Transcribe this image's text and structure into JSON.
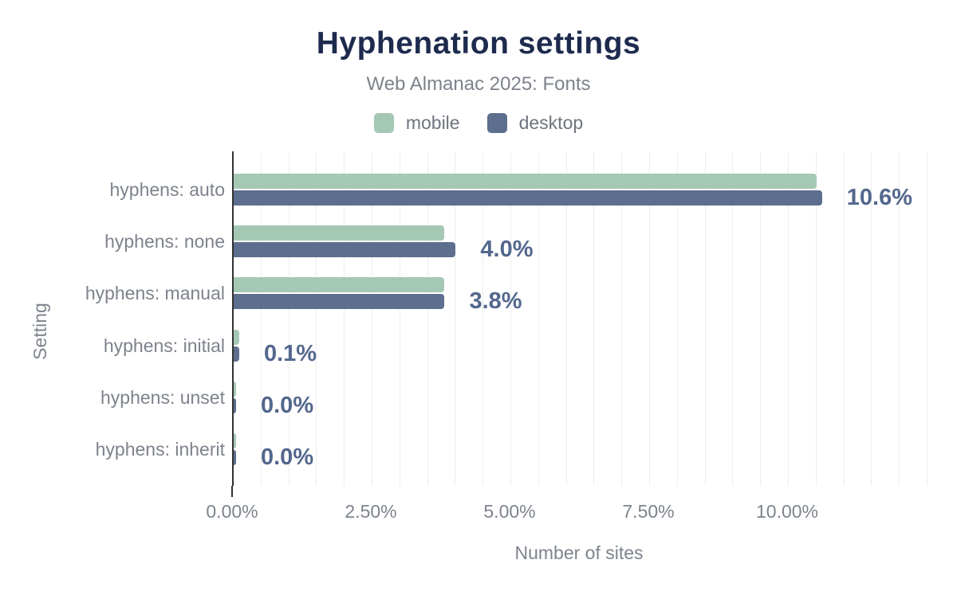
{
  "header": {
    "title": "Hyphenation settings",
    "subtitle": "Web Almanac 2025: Fonts"
  },
  "chart_data": {
    "type": "bar",
    "orientation": "horizontal",
    "title": "Hyphenation settings",
    "subtitle": "Web Almanac 2025: Fonts",
    "categories": [
      "hyphens: auto",
      "hyphens: none",
      "hyphens: manual",
      "hyphens: initial",
      "hyphens: unset",
      "hyphens: inherit"
    ],
    "series": [
      {
        "name": "mobile",
        "color": "#a5c8b4",
        "values": [
          10.5,
          3.8,
          3.8,
          0.1,
          0.0,
          0.0
        ]
      },
      {
        "name": "desktop",
        "color": "#5d6e8e",
        "values": [
          10.6,
          4.0,
          3.8,
          0.1,
          0.0,
          0.0
        ]
      }
    ],
    "value_labels": [
      "10.6%",
      "4.0%",
      "3.8%",
      "0.1%",
      "0.0%",
      "0.0%"
    ],
    "xlabel": "Number of sites",
    "ylabel": "Setting",
    "x_ticks": [
      "0.00%",
      "2.50%",
      "5.00%",
      "7.50%",
      "10.00%"
    ],
    "x_tick_values": [
      0,
      2.5,
      5,
      7.5,
      10
    ],
    "xlim": [
      0,
      12.5
    ],
    "grid": "minor-vertical-0.5pct",
    "legend_position": "top"
  },
  "colors": {
    "title": "#1e2b4e",
    "muted_text": "#7d828c",
    "value_label": "#53678d",
    "axis_line": "#333333",
    "gridline": "#ededed",
    "mobile": "#a5c8b4",
    "desktop": "#5d6e8e",
    "background": "#ffffff"
  }
}
